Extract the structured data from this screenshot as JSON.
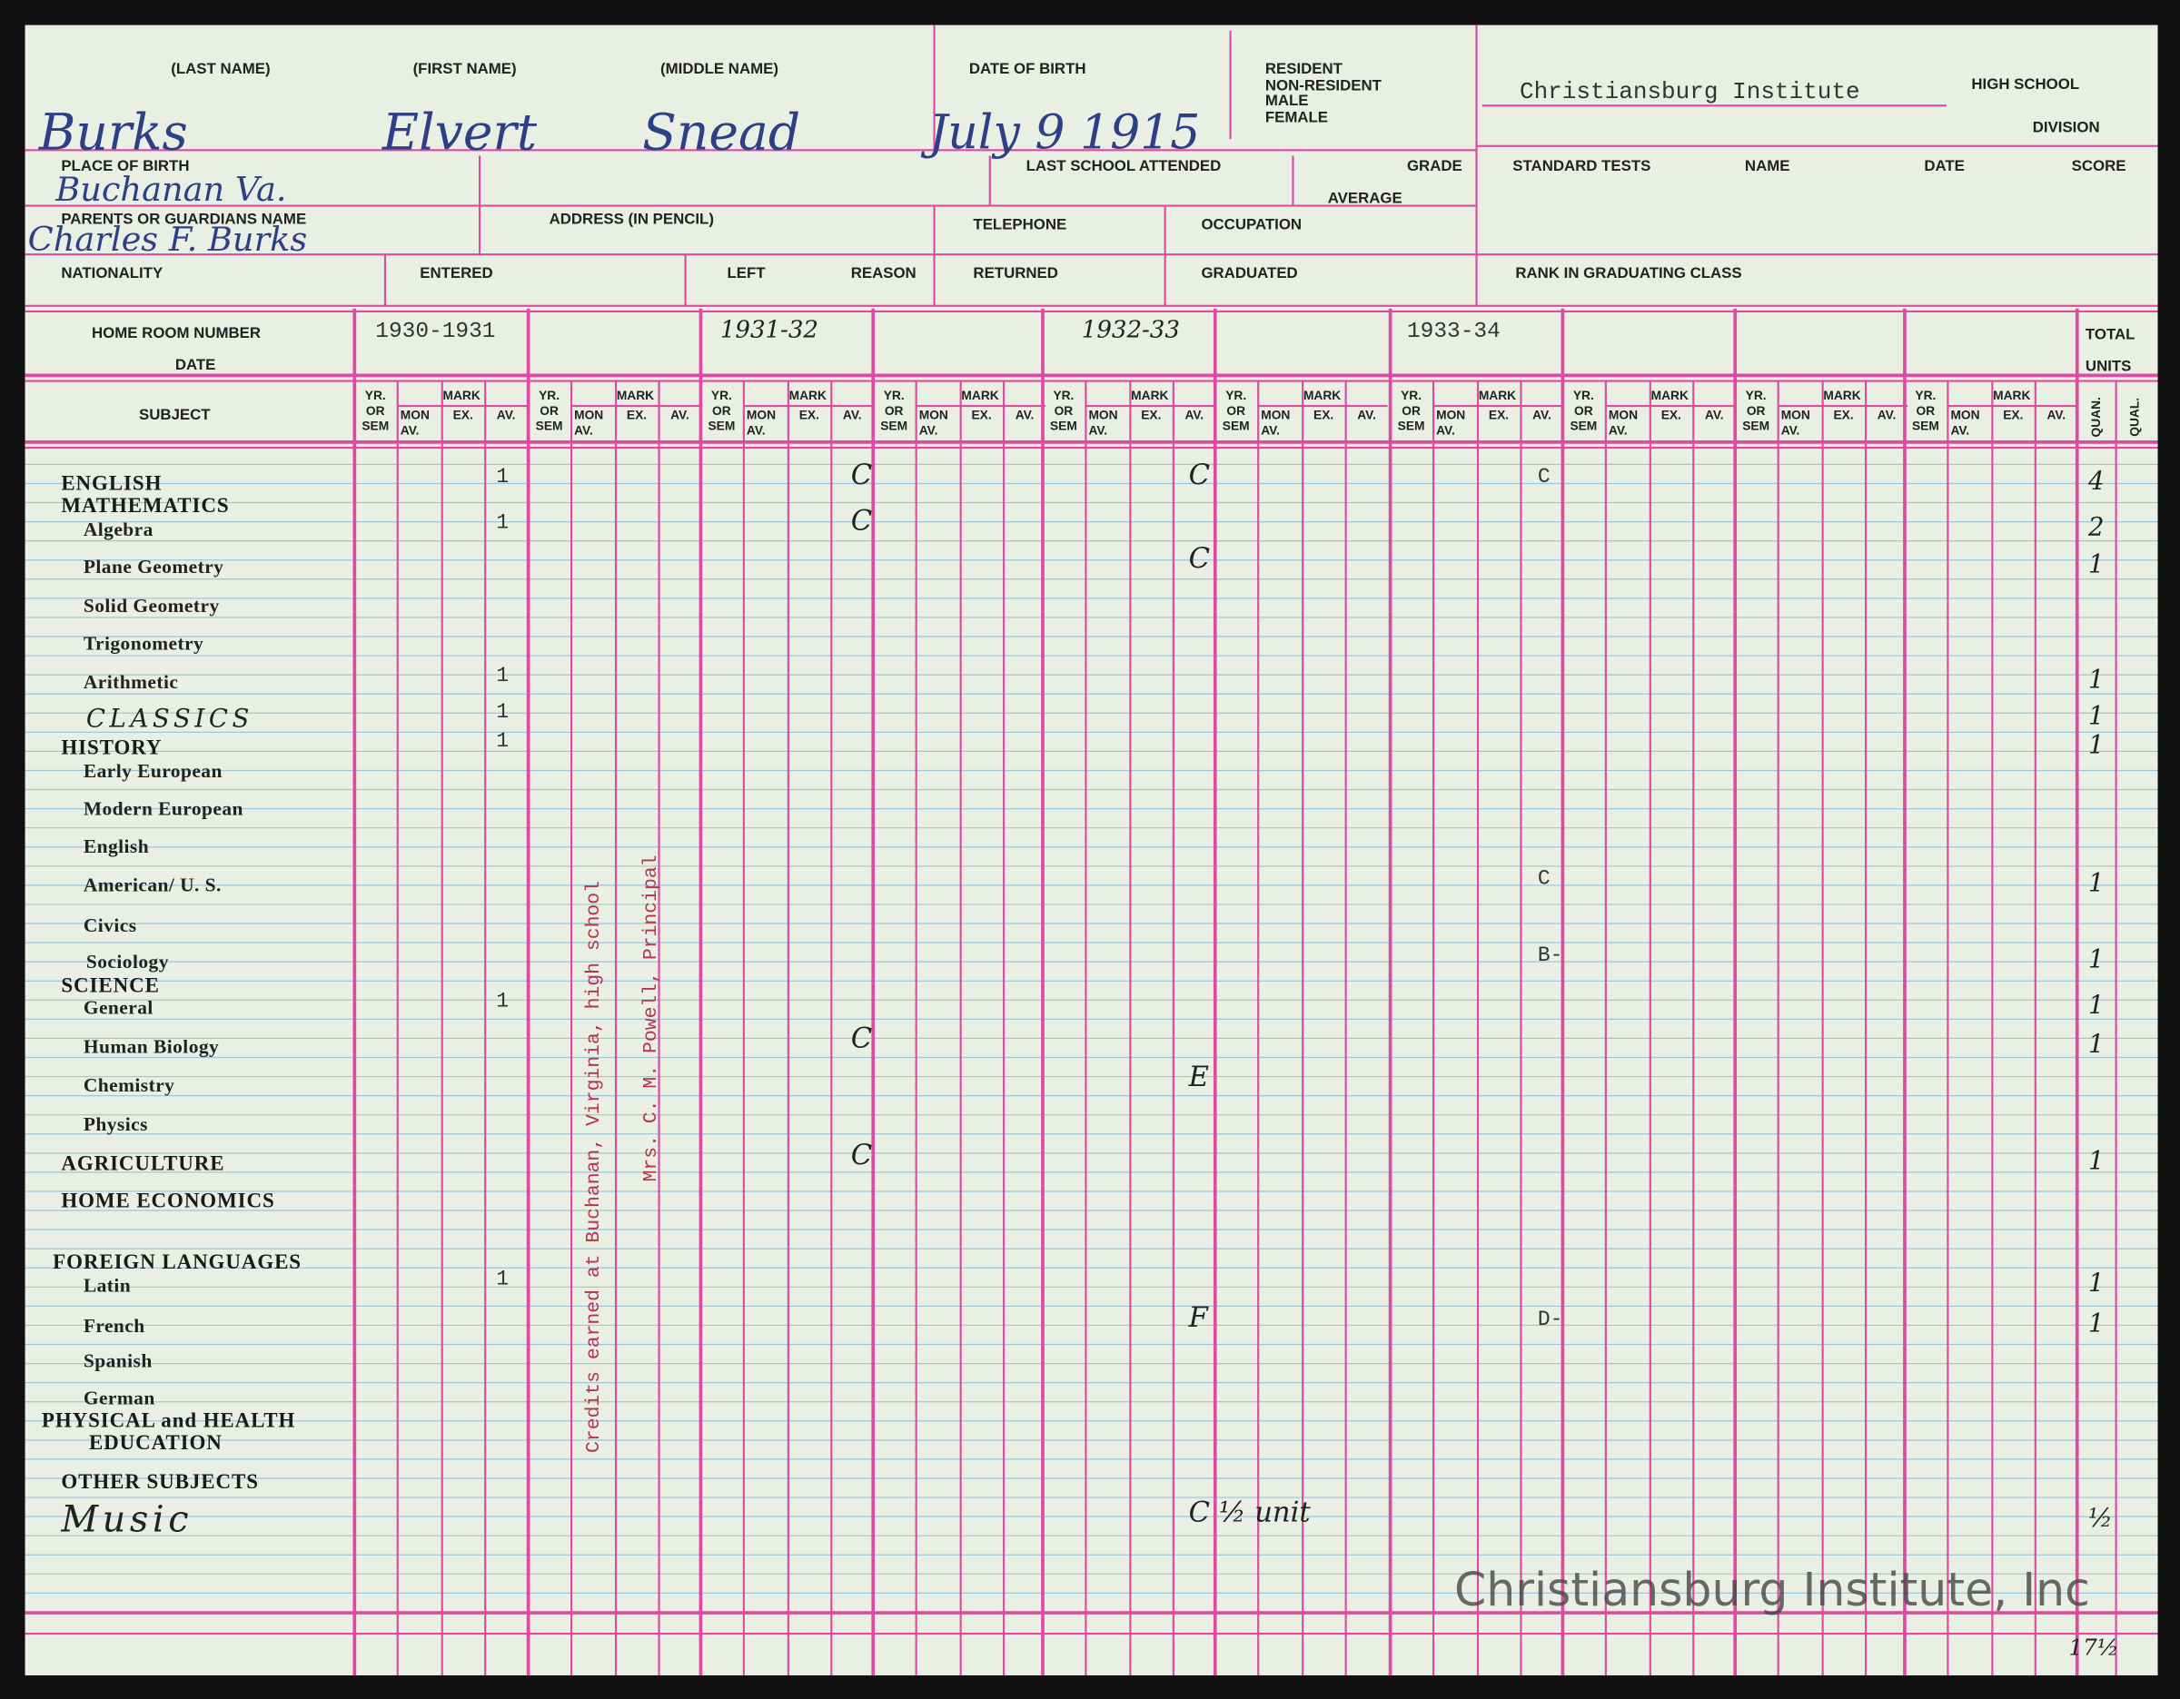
{
  "header": {
    "school": "Christiansburg Institute",
    "high_school": "HIGH SCHOOL",
    "division": "DIVISION",
    "labels": [
      "(LAST NAME)",
      "(FIRST NAME)",
      "(MIDDLE NAME)",
      "DATE OF BIRTH",
      "RESIDENT",
      "NON-RESIDENT",
      "MALE",
      "FEMALE",
      "PLACE OF BIRTH",
      "LAST SCHOOL ATTENDED",
      "GRADE",
      "AVERAGE",
      "STANDARD TESTS",
      "NAME",
      "DATE",
      "SCORE",
      "PARENTS OR GUARDIANS NAME",
      "ADDRESS (IN PENCIL)",
      "TELEPHONE",
      "OCCUPATION",
      "NATIONALITY",
      "ENTERED",
      "LEFT",
      "REASON",
      "RETURNED",
      "GRADUATED",
      "RANK IN GRADUATING CLASS"
    ],
    "entries": [
      "Burks",
      "Elvert",
      "Snead",
      "July 9 1915",
      "Buchanan Va.",
      "Charles F. Burks"
    ]
  },
  "grid": {
    "home_room": "HOME ROOM NUMBER",
    "date": "DATE",
    "subject": "SUBJECT",
    "total": "TOTAL",
    "units": "UNITS",
    "quan": "QUAN.",
    "qual": "QUAL.",
    "years": [
      "1930-1931",
      "1931-32",
      "1932-33",
      "1933-34"
    ],
    "column_headers": {
      "yr": [
        "YR.",
        "OR",
        "SEM"
      ],
      "mark": "MARK",
      "mon": [
        "MON",
        "AV."
      ],
      "ex": "EX.",
      "av": "AV."
    }
  },
  "subjects": [
    {
      "name": "ENGLISH",
      "marks": [
        1,
        "C",
        "C",
        "C"
      ],
      "units": 4
    },
    {
      "name": "MATHEMATICS",
      "marks": [
        null,
        null,
        null,
        null
      ],
      "units": null
    },
    {
      "name": "Algebra",
      "marks": [
        1,
        "C",
        null,
        null
      ],
      "units": 2
    },
    {
      "name": "Plane Geometry",
      "marks": [
        null,
        null,
        "C",
        null
      ],
      "units": 1
    },
    {
      "name": "Solid Geometry",
      "marks": [
        null,
        null,
        null,
        null
      ],
      "units": null
    },
    {
      "name": "Trigonometry",
      "marks": [
        null,
        null,
        null,
        null
      ],
      "units": null
    },
    {
      "name": "Arithmetic",
      "marks": [
        1,
        null,
        null,
        null
      ],
      "units": 1
    },
    {
      "name": "CLASSICS",
      "marks": [
        1,
        null,
        null,
        null
      ],
      "units": 1
    },
    {
      "name": "HISTORY",
      "marks": [
        1,
        null,
        null,
        null
      ],
      "units": 1
    },
    {
      "name": "Early European",
      "marks": [
        null,
        null,
        null,
        null
      ],
      "units": null
    },
    {
      "name": "Modern European",
      "marks": [
        null,
        null,
        null,
        null
      ],
      "units": null
    },
    {
      "name": "English",
      "marks": [
        null,
        null,
        null,
        null
      ],
      "units": null
    },
    {
      "name": "American/ U. S.",
      "marks": [
        null,
        null,
        null,
        "C"
      ],
      "units": 1
    },
    {
      "name": "Civics",
      "marks": [
        null,
        null,
        null,
        null
      ],
      "units": null
    },
    {
      "name": "Sociology",
      "marks": [
        null,
        null,
        null,
        "B-"
      ],
      "units": 1
    },
    {
      "name": "SCIENCE",
      "marks": [
        null,
        null,
        null,
        null
      ],
      "units": null
    },
    {
      "name": "General",
      "marks": [
        1,
        null,
        null,
        null
      ],
      "units": 1
    },
    {
      "name": "Human Biology",
      "marks": [
        null,
        "C",
        null,
        null
      ],
      "units": 1
    },
    {
      "name": "Chemistry",
      "marks": [
        null,
        null,
        "E",
        null
      ],
      "units": null
    },
    {
      "name": "Physics",
      "marks": [
        null,
        null,
        null,
        null
      ],
      "units": null
    },
    {
      "name": "AGRICULTURE",
      "marks": [
        null,
        "C",
        null,
        null
      ],
      "units": 1
    },
    {
      "name": "HOME ECONOMICS",
      "marks": [
        null,
        null,
        null,
        null
      ],
      "units": null
    },
    {
      "name": "FOREIGN LANGUAGES",
      "marks": [
        null,
        null,
        null,
        null
      ],
      "units": null
    },
    {
      "name": "Latin",
      "marks": [
        1,
        null,
        null,
        null
      ],
      "units": 1
    },
    {
      "name": "French",
      "marks": [
        null,
        null,
        "F",
        "D-"
      ],
      "units": 1
    },
    {
      "name": "Spanish",
      "marks": [
        null,
        null,
        null,
        null
      ],
      "units": null
    },
    {
      "name": "German",
      "marks": [
        null,
        null,
        null,
        null
      ],
      "units": null
    },
    {
      "name": "PHYSICAL and HEALTH",
      "marks": [
        null,
        null,
        null,
        null
      ],
      "units": null
    },
    {
      "name": "EDUCATION",
      "marks": [
        null,
        null,
        null,
        null
      ],
      "units": null
    },
    {
      "name": "OTHER SUBJECTS",
      "marks": [
        null,
        null,
        null,
        null
      ],
      "units": null
    },
    {
      "name": "Music",
      "marks": [
        null,
        null,
        "C ½ unit",
        null
      ],
      "units": "½"
    }
  ],
  "notes": [
    "Credits earned at Buchanan, Virginia, high school",
    "Mrs. C. M. Powell, Principal"
  ],
  "total_units": "17½",
  "watermark": "Christiansburg Institute, Inc"
}
